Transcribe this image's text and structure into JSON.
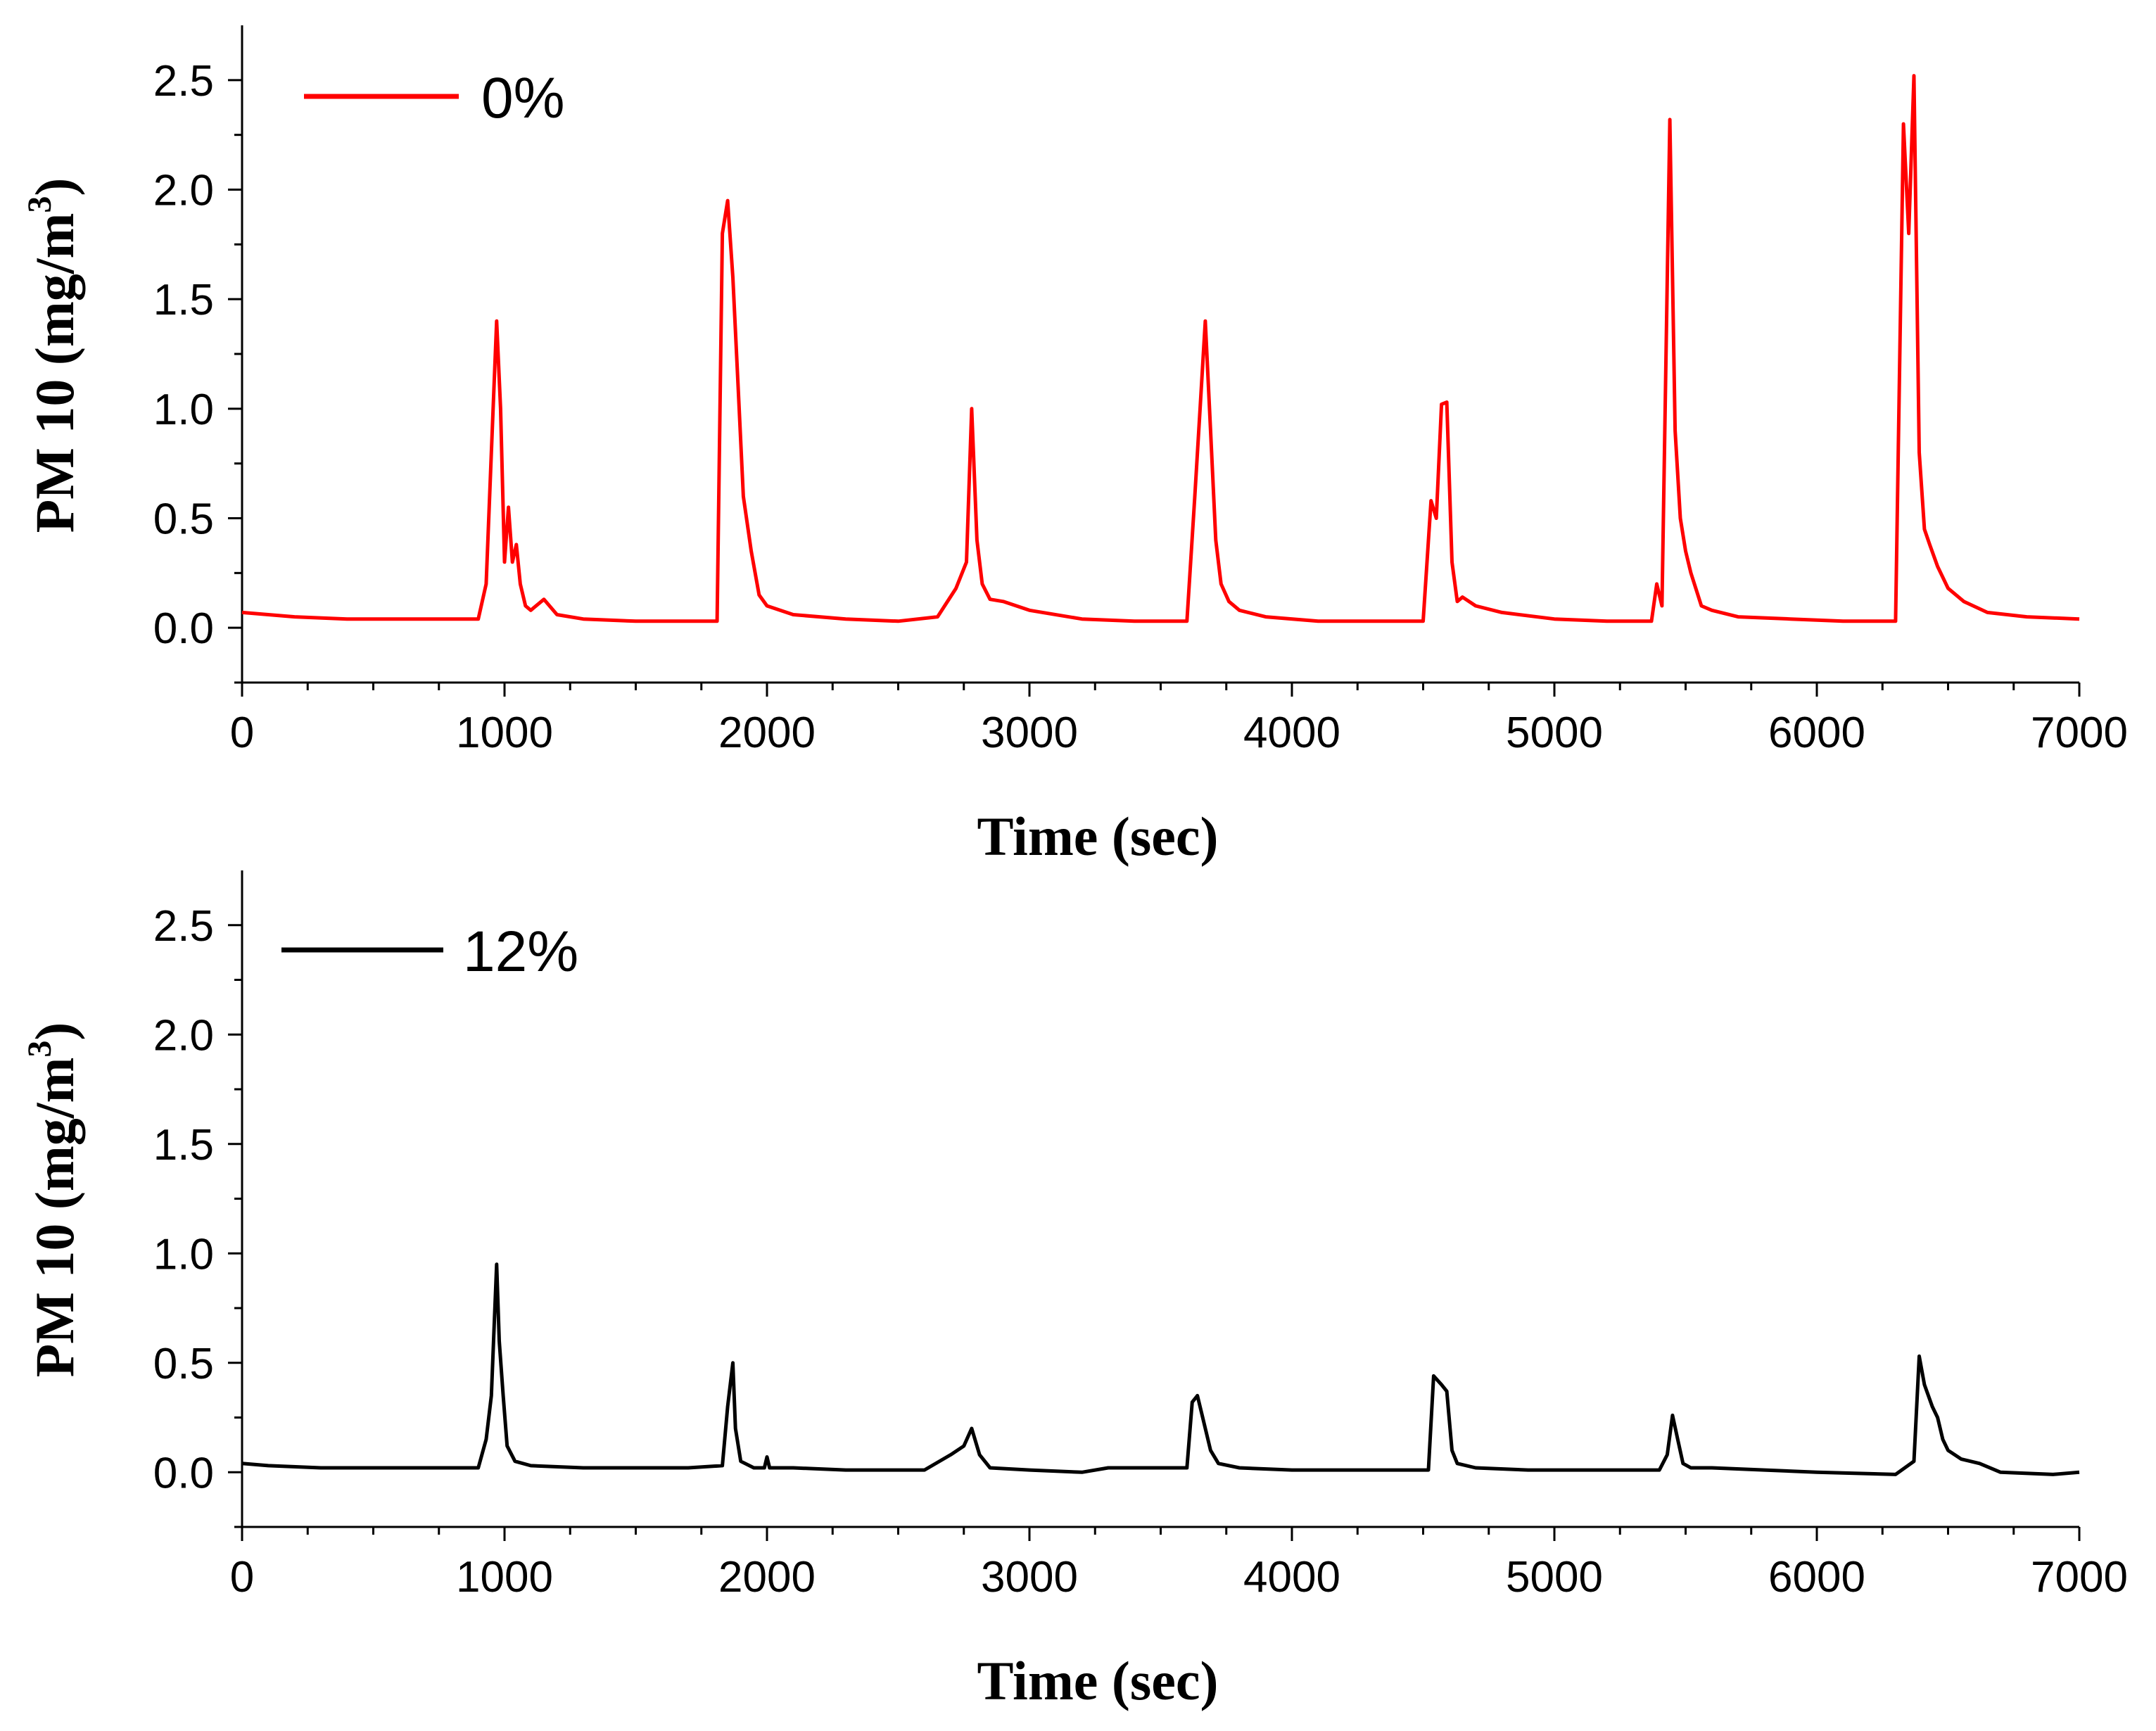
{
  "chart_data": [
    {
      "type": "line",
      "panel": "top",
      "xlabel": "Time (sec)",
      "ylabel": "PM 10 (mg/m",
      "ylabel_superscript": "3",
      "ylabel_close": ")",
      "xlim": [
        0,
        7000
      ],
      "ylim": [
        -0.25,
        2.75
      ],
      "xticks": [
        "0",
        "1000",
        "2000",
        "3000",
        "4000",
        "5000",
        "6000",
        "7000"
      ],
      "yticks": [
        "0.0",
        "0.5",
        "1.0",
        "1.5",
        "2.0",
        "2.5"
      ],
      "legend": {
        "label": "0%",
        "placement": "top-left"
      },
      "series": [
        {
          "name": "0%",
          "color": "#ff0000",
          "x": [
            0,
            100,
            200,
            400,
            600,
            800,
            900,
            930,
            950,
            970,
            985,
            1000,
            1015,
            1030,
            1045,
            1060,
            1080,
            1100,
            1150,
            1200,
            1300,
            1500,
            1700,
            1810,
            1830,
            1850,
            1870,
            1890,
            1910,
            1940,
            1970,
            2000,
            2100,
            2300,
            2500,
            2650,
            2720,
            2760,
            2780,
            2800,
            2820,
            2850,
            2900,
            3000,
            3200,
            3400,
            3600,
            3630,
            3650,
            3670,
            3690,
            3710,
            3730,
            3760,
            3800,
            3900,
            4100,
            4300,
            4500,
            4530,
            4550,
            4570,
            4590,
            4610,
            4630,
            4650,
            4700,
            4800,
            5000,
            5200,
            5370,
            5390,
            5410,
            5440,
            5460,
            5480,
            5500,
            5520,
            5560,
            5600,
            5700,
            5900,
            6100,
            6300,
            6330,
            6350,
            6370,
            6390,
            6410,
            6430,
            6460,
            6500,
            6560,
            6650,
            6800,
            7000
          ],
          "y": [
            0.07,
            0.06,
            0.05,
            0.04,
            0.04,
            0.04,
            0.04,
            0.2,
            0.8,
            1.4,
            1.0,
            0.3,
            0.55,
            0.3,
            0.38,
            0.2,
            0.1,
            0.08,
            0.13,
            0.06,
            0.04,
            0.03,
            0.03,
            0.03,
            1.8,
            1.95,
            1.6,
            1.1,
            0.6,
            0.35,
            0.15,
            0.1,
            0.06,
            0.04,
            0.03,
            0.05,
            0.18,
            0.3,
            1.0,
            0.4,
            0.2,
            0.13,
            0.12,
            0.08,
            0.04,
            0.03,
            0.03,
            0.6,
            1.0,
            1.4,
            0.9,
            0.4,
            0.2,
            0.12,
            0.08,
            0.05,
            0.03,
            0.03,
            0.03,
            0.58,
            0.5,
            1.02,
            1.03,
            0.3,
            0.12,
            0.14,
            0.1,
            0.07,
            0.04,
            0.03,
            0.03,
            0.2,
            0.1,
            2.32,
            0.9,
            0.5,
            0.35,
            0.25,
            0.1,
            0.08,
            0.05,
            0.04,
            0.03,
            0.03,
            2.3,
            1.8,
            2.52,
            0.8,
            0.45,
            0.38,
            0.28,
            0.18,
            0.12,
            0.07,
            0.05,
            0.04
          ]
        }
      ]
    },
    {
      "type": "line",
      "panel": "bottom",
      "xlabel": "Time (sec)",
      "ylabel": "PM 10 (mg/m",
      "ylabel_superscript": "3",
      "ylabel_close": ")",
      "xlim": [
        0,
        7000
      ],
      "ylim": [
        -0.25,
        2.75
      ],
      "xticks": [
        "0",
        "1000",
        "2000",
        "3000",
        "4000",
        "5000",
        "6000",
        "7000"
      ],
      "yticks": [
        "0.0",
        "0.5",
        "1.0",
        "1.5",
        "2.0",
        "2.5"
      ],
      "legend": {
        "label": "12%",
        "placement": "top-left"
      },
      "series": [
        {
          "name": "12%",
          "color": "#000000",
          "x": [
            0,
            100,
            300,
            600,
            900,
            930,
            950,
            970,
            980,
            995,
            1010,
            1040,
            1100,
            1300,
            1500,
            1700,
            1830,
            1850,
            1870,
            1880,
            1900,
            1950,
            1990,
            2000,
            2010,
            2100,
            2300,
            2600,
            2700,
            2750,
            2780,
            2810,
            2850,
            3000,
            3200,
            3300,
            3600,
            3620,
            3640,
            3660,
            3690,
            3720,
            3800,
            4000,
            4300,
            4520,
            4540,
            4570,
            4590,
            4610,
            4630,
            4700,
            4900,
            5100,
            5400,
            5430,
            5450,
            5470,
            5490,
            5520,
            5600,
            5800,
            6000,
            6300,
            6370,
            6390,
            6410,
            6440,
            6460,
            6480,
            6500,
            6550,
            6620,
            6700,
            6900,
            7000
          ],
          "y": [
            0.04,
            0.03,
            0.02,
            0.02,
            0.02,
            0.15,
            0.35,
            0.95,
            0.6,
            0.35,
            0.12,
            0.05,
            0.03,
            0.02,
            0.02,
            0.02,
            0.03,
            0.3,
            0.5,
            0.2,
            0.05,
            0.02,
            0.02,
            0.07,
            0.02,
            0.02,
            0.01,
            0.01,
            0.08,
            0.12,
            0.2,
            0.08,
            0.02,
            0.01,
            0.0,
            0.02,
            0.02,
            0.32,
            0.35,
            0.25,
            0.1,
            0.04,
            0.02,
            0.01,
            0.01,
            0.01,
            0.44,
            0.4,
            0.37,
            0.1,
            0.04,
            0.02,
            0.01,
            0.01,
            0.01,
            0.08,
            0.26,
            0.15,
            0.04,
            0.02,
            0.02,
            0.01,
            0.0,
            -0.01,
            0.05,
            0.53,
            0.4,
            0.3,
            0.25,
            0.15,
            0.1,
            0.06,
            0.04,
            0.0,
            -0.01,
            0.0
          ]
        }
      ]
    }
  ]
}
